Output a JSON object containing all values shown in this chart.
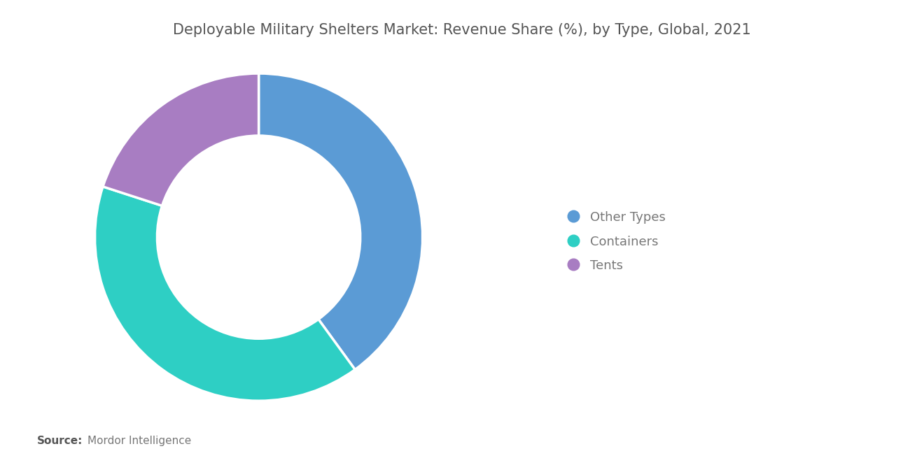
{
  "title": "Deployable Military Shelters Market: Revenue Share (%), by Type, Global, 2021",
  "title_fontsize": 15,
  "title_color": "#555555",
  "slices": [
    {
      "label": "Other Types",
      "value": 40,
      "color": "#5B9BD5"
    },
    {
      "label": "Containers",
      "value": 40,
      "color": "#2ECFC4"
    },
    {
      "label": "Tents",
      "value": 20,
      "color": "#A87DC2"
    }
  ],
  "legend_labels": [
    "Other Types",
    "Containers",
    "Tents"
  ],
  "legend_colors": [
    "#5B9BD5",
    "#2ECFC4",
    "#A87DC2"
  ],
  "source_bold": "Source:",
  "source_text": "Mordor Intelligence",
  "source_fontsize": 11,
  "source_color": "#777777",
  "source_bold_color": "#555555",
  "background_color": "#ffffff",
  "donut_width": 0.38
}
